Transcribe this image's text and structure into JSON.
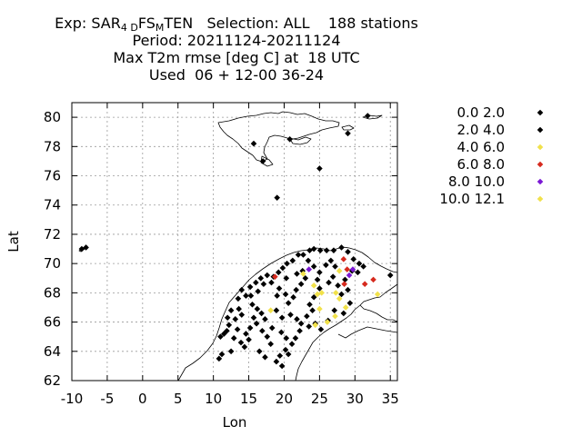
{
  "title": {
    "line1": {
      "pre": "Exp: SAR",
      "sub1": "4 D",
      "mid": "FS",
      "sub2": "M",
      "post": "TEN   Selection: ALL    188 stations"
    },
    "line2": "Period: 20211124-20211124",
    "line3": "Max T2m rmse [deg C] at  18 UTC",
    "line4": "Used  06 + 12-00 36-24"
  },
  "chart_data": {
    "type": "scatter",
    "xlabel": "Lon",
    "ylabel": "Lat",
    "xlim": [
      -10,
      36
    ],
    "ylim": [
      62,
      81
    ],
    "xticks": [
      -10,
      -5,
      0,
      5,
      10,
      15,
      20,
      25,
      30,
      35
    ],
    "yticks": [
      62,
      64,
      66,
      68,
      70,
      72,
      74,
      76,
      78,
      80
    ],
    "grid": true,
    "legend_position": "right",
    "series": [
      {
        "name": "0.0 2.0",
        "color": "#000000",
        "points": [
          [
            25.0,
            76.5
          ],
          [
            29.0,
            78.9
          ],
          [
            20.8,
            78.5
          ],
          [
            15.7,
            78.2
          ],
          [
            31.8,
            80.1
          ],
          [
            17.0,
            77.0
          ],
          [
            19.0,
            74.5
          ],
          [
            -8.6,
            71.0
          ],
          [
            -8.0,
            71.1
          ],
          [
            18.5,
            69.1
          ],
          [
            19.2,
            69.4
          ],
          [
            19.8,
            69.7
          ],
          [
            20.4,
            70.0
          ],
          [
            21.2,
            70.2
          ],
          [
            22.0,
            70.6
          ],
          [
            22.7,
            70.6
          ],
          [
            23.6,
            70.9
          ],
          [
            24.2,
            71.0
          ],
          [
            25.1,
            70.9
          ],
          [
            26.0,
            70.9
          ],
          [
            27.0,
            70.9
          ],
          [
            28.1,
            71.1
          ],
          [
            29.0,
            70.8
          ],
          [
            29.8,
            70.3
          ],
          [
            30.6,
            70.0
          ],
          [
            31.2,
            69.8
          ],
          [
            35.0,
            69.2
          ],
          [
            14.0,
            68.2
          ],
          [
            14.6,
            67.8
          ],
          [
            13.5,
            67.6
          ],
          [
            12.5,
            66.8
          ],
          [
            13.1,
            66.2
          ],
          [
            12.2,
            65.8
          ],
          [
            11.9,
            65.4
          ],
          [
            11.5,
            65.2
          ],
          [
            12.9,
            64.9
          ],
          [
            13.9,
            64.6
          ],
          [
            14.4,
            64.3
          ],
          [
            12.5,
            64.0
          ],
          [
            11.2,
            63.8
          ],
          [
            10.8,
            63.5
          ],
          [
            11.0,
            65.0
          ],
          [
            15.5,
            67.2
          ],
          [
            16.2,
            66.9
          ],
          [
            16.8,
            66.6
          ],
          [
            17.3,
            66.2
          ],
          [
            16.1,
            65.9
          ],
          [
            15.2,
            65.6
          ],
          [
            14.6,
            65.2
          ],
          [
            15.0,
            64.8
          ],
          [
            13.4,
            65.5
          ],
          [
            14.0,
            66.5
          ],
          [
            15.3,
            67.8
          ],
          [
            16.3,
            68.1
          ],
          [
            17.1,
            68.6
          ],
          [
            16.0,
            68.7
          ],
          [
            15.2,
            68.4
          ],
          [
            16.7,
            69.0
          ],
          [
            17.6,
            69.2
          ],
          [
            18.2,
            68.7
          ],
          [
            19.3,
            68.3
          ],
          [
            19.0,
            67.8
          ],
          [
            20.2,
            67.9
          ],
          [
            20.6,
            67.3
          ],
          [
            21.3,
            67.7
          ],
          [
            21.7,
            68.2
          ],
          [
            22.4,
            68.6
          ],
          [
            23.0,
            69.0
          ],
          [
            22.6,
            69.5
          ],
          [
            23.4,
            70.2
          ],
          [
            24.2,
            69.8
          ],
          [
            25.0,
            69.4
          ],
          [
            25.9,
            69.9
          ],
          [
            26.6,
            70.2
          ],
          [
            27.2,
            69.8
          ],
          [
            18.9,
            66.8
          ],
          [
            19.7,
            66.3
          ],
          [
            20.9,
            66.5
          ],
          [
            21.8,
            66.2
          ],
          [
            22.4,
            65.9
          ],
          [
            23.2,
            66.4
          ],
          [
            24.0,
            66.8
          ],
          [
            23.6,
            67.2
          ],
          [
            24.2,
            67.7
          ],
          [
            25.0,
            68.3
          ],
          [
            24.7,
            68.9
          ],
          [
            26.3,
            68.7
          ],
          [
            26.9,
            69.1
          ],
          [
            27.6,
            68.5
          ],
          [
            28.1,
            67.9
          ],
          [
            18.3,
            65.6
          ],
          [
            19.6,
            65.3
          ],
          [
            20.3,
            64.9
          ],
          [
            21.1,
            64.5
          ],
          [
            20.2,
            64.1
          ],
          [
            19.4,
            63.7
          ],
          [
            18.9,
            63.3
          ],
          [
            19.7,
            63.0
          ],
          [
            20.6,
            63.8
          ],
          [
            21.6,
            64.9
          ],
          [
            22.2,
            65.4
          ],
          [
            23.5,
            65.7
          ],
          [
            24.4,
            65.9
          ],
          [
            25.2,
            65.5
          ],
          [
            26.2,
            66.1
          ],
          [
            27.1,
            66.8
          ],
          [
            28.4,
            66.6
          ],
          [
            29.3,
            67.3
          ],
          [
            29.0,
            68.2
          ],
          [
            28.6,
            68.9
          ],
          [
            29.6,
            69.5
          ],
          [
            30.4,
            69.4
          ],
          [
            16.5,
            64.0
          ],
          [
            17.3,
            63.6
          ],
          [
            18.1,
            64.5
          ],
          [
            17.6,
            65.0
          ],
          [
            16.9,
            65.4
          ],
          [
            12.0,
            66.3
          ],
          [
            13.6,
            66.9
          ],
          [
            15.7,
            66.3
          ],
          [
            20.3,
            69.0
          ],
          [
            21.8,
            69.3
          ]
        ]
      },
      {
        "name": "2.0 4.0",
        "color": "#000000",
        "points": []
      },
      {
        "name": "4.0 6.0",
        "color": "#f1e14b",
        "points": [
          [
            18.1,
            66.8
          ],
          [
            22.7,
            69.3
          ],
          [
            24.2,
            68.5
          ],
          [
            24.7,
            67.9
          ],
          [
            25.0,
            66.9
          ],
          [
            26.1,
            66.0
          ],
          [
            27.3,
            68.0
          ],
          [
            27.8,
            69.5
          ],
          [
            28.7,
            67.0
          ],
          [
            33.2,
            67.9
          ],
          [
            24.4,
            65.8
          ],
          [
            27.2,
            66.4
          ]
        ]
      },
      {
        "name": "6.0 8.0",
        "color": "#d62a1e",
        "points": [
          [
            28.4,
            70.3
          ],
          [
            28.9,
            69.6
          ],
          [
            31.4,
            68.6
          ],
          [
            32.6,
            68.9
          ],
          [
            28.5,
            68.6
          ],
          [
            18.7,
            69.1
          ]
        ]
      },
      {
        "name": "8.0 10.0",
        "color": "#7b18d4",
        "points": [
          [
            23.5,
            69.6
          ],
          [
            29.7,
            69.6
          ],
          [
            29.2,
            69.2
          ]
        ]
      },
      {
        "name": "10.0 12.1",
        "color": "#f1e14b",
        "points": [
          [
            25.3,
            68.0
          ],
          [
            27.8,
            67.6
          ]
        ]
      }
    ]
  }
}
